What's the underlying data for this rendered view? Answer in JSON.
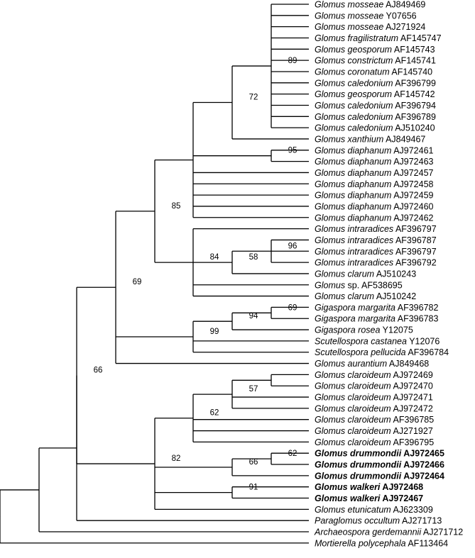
{
  "tree": {
    "leaves": [
      {
        "genus": "Glomus",
        "epithet": "mosseae",
        "accession": "AJ849469"
      },
      {
        "genus": "Glomus",
        "epithet": "mosseae",
        "accession": "Y07656"
      },
      {
        "genus": "Glomus",
        "epithet": "mosseae",
        "accession": "AJ271924"
      },
      {
        "genus": "Glomus",
        "epithet": "fragilistratum",
        "accession": "AF145747"
      },
      {
        "genus": "Glomus",
        "epithet": "geosporum",
        "accession": "AF145743"
      },
      {
        "genus": "Glomus",
        "epithet": "constrictum",
        "accession": "AF145741"
      },
      {
        "genus": "Glomus",
        "epithet": "coronatum",
        "accession": "AF145740"
      },
      {
        "genus": "Glomus",
        "epithet": "caledonium",
        "accession": "AF396799"
      },
      {
        "genus": "Glomus",
        "epithet": "geosporum",
        "accession": "AF145742"
      },
      {
        "genus": "Glomus",
        "epithet": "caledonium",
        "accession": "AF396794"
      },
      {
        "genus": "Glomus",
        "epithet": "caledonium",
        "accession": "AF396789"
      },
      {
        "genus": "Glomus",
        "epithet": "caledonium",
        "accession": "AJ510240"
      },
      {
        "genus": "Glomus",
        "epithet": "xanthium",
        "accession": "AJ849467"
      },
      {
        "genus": "Glomus",
        "epithet": "diaphanum",
        "accession": "AJ972461"
      },
      {
        "genus": "Glomus",
        "epithet": "diaphanum",
        "accession": "AJ972463"
      },
      {
        "genus": "Glomus",
        "epithet": "diaphanum",
        "accession": "AJ972457"
      },
      {
        "genus": "Glomus",
        "epithet": "diaphanum",
        "accession": "AJ972458"
      },
      {
        "genus": "Glomus",
        "epithet": "diaphanum",
        "accession": "AJ972459"
      },
      {
        "genus": "Glomus",
        "epithet": "diaphanum",
        "accession": "AJ972460"
      },
      {
        "genus": "Glomus",
        "epithet": "diaphanum",
        "accession": "AJ972462"
      },
      {
        "genus": "Glomus",
        "epithet": "intraradices",
        "accession": "AF396797"
      },
      {
        "genus": "Glomus",
        "epithet": "intraradices",
        "accession": "AF396787"
      },
      {
        "genus": "Glomus",
        "epithet": "intraradices",
        "accession": "AF396797"
      },
      {
        "genus": "Glomus",
        "epithet": "intraradices",
        "accession": "AF396792"
      },
      {
        "genus": "Glomus",
        "epithet": "clarum",
        "accession": "AJ510243"
      },
      {
        "genus": "Glomus",
        "epithet": "sp.",
        "accession": "AF538695",
        "upright_epithet": true
      },
      {
        "genus": "Glomus",
        "epithet": "clarum",
        "accession": "AJ510242"
      },
      {
        "genus": "Gigaspora",
        "epithet": "margarita",
        "accession": "AF396782"
      },
      {
        "genus": "Gigaspora",
        "epithet": "margarita",
        "accession": "AF396783"
      },
      {
        "genus": "Gigaspora",
        "epithet": "rosea",
        "accession": "Y12075"
      },
      {
        "genus": "Scutellospora",
        "epithet": "castanea",
        "accession": "Y12076"
      },
      {
        "genus": "Scutellospora",
        "epithet": "pellucida",
        "accession": "AF396784"
      },
      {
        "genus": "Glomus",
        "epithet": "aurantium",
        "accession": "AJ849468"
      },
      {
        "genus": "Glomus",
        "epithet": "claroideum",
        "accession": "AJ972469"
      },
      {
        "genus": "Glomus",
        "epithet": "claroideum",
        "accession": "AJ972470"
      },
      {
        "genus": "Glomus",
        "epithet": "claroideum",
        "accession": "AJ972471"
      },
      {
        "genus": "Glomus",
        "epithet": "claroideum",
        "accession": "AJ972472"
      },
      {
        "genus": "Glomus",
        "epithet": "claroideum",
        "accession": "AF396785"
      },
      {
        "genus": "Glomus",
        "epithet": "claroideum",
        "accession": "AJ271927"
      },
      {
        "genus": "Glomus",
        "epithet": "claroideum",
        "accession": "AF396795"
      },
      {
        "genus": "Glomus",
        "epithet": "drummondii",
        "accession": "AJ972465",
        "bold": true
      },
      {
        "genus": "Glomus",
        "epithet": "drummondii",
        "accession": "AJ972466",
        "bold": true
      },
      {
        "genus": "Glomus",
        "epithet": "drummondii",
        "accession": "AJ972464",
        "bold": true
      },
      {
        "genus": "Glomus",
        "epithet": "walkeri",
        "accession": "AJ972468",
        "bold": true
      },
      {
        "genus": "Glomus",
        "epithet": "walkeri",
        "accession": "AJ972467",
        "bold": true
      },
      {
        "genus": "Glomus",
        "epithet": "etunicatum",
        "accession": "AJ623309"
      },
      {
        "genus": "Paraglomus",
        "epithet": "occultum",
        "accession": "AJ271713"
      },
      {
        "genus": "Archaeospora",
        "epithet": "gerdemannii",
        "accession": "AJ271712"
      },
      {
        "genus": "Mortierella",
        "epithet": "polycephala",
        "accession": "AF113464"
      }
    ],
    "clades": [
      {
        "id": "n89",
        "support": "89",
        "members": [
          "L0",
          "L1",
          "L2",
          "L3",
          "L4",
          "L5",
          "L6",
          "L7",
          "L8",
          "L9",
          "L10",
          "L11"
        ]
      },
      {
        "id": "n72",
        "support": "72",
        "members": [
          "n89",
          "L12"
        ]
      },
      {
        "id": "n95",
        "support": "95",
        "members": [
          "L13",
          "L14"
        ]
      },
      {
        "id": "nDia",
        "support": "",
        "members": [
          "n72",
          "n95",
          "L15",
          "L16",
          "L17",
          "L18",
          "L19"
        ]
      },
      {
        "id": "n96",
        "support": "96",
        "members": [
          "L21",
          "L22",
          "L23"
        ]
      },
      {
        "id": "n58",
        "support": "58",
        "members": [
          "n96",
          "L24"
        ]
      },
      {
        "id": "n84",
        "support": "84",
        "members": [
          "L20",
          "n58",
          "L25",
          "L26"
        ]
      },
      {
        "id": "n85",
        "support": "85",
        "members": [
          "nDia",
          "n84"
        ]
      },
      {
        "id": "n69b",
        "support": "69",
        "members": [
          "L27",
          "L28"
        ]
      },
      {
        "id": "n94",
        "support": "94",
        "members": [
          "n69b",
          "L29"
        ]
      },
      {
        "id": "n99",
        "support": "99",
        "members": [
          "n94",
          "L30",
          "L31"
        ]
      },
      {
        "id": "n69",
        "support": "69",
        "members": [
          "n85",
          "n99",
          "L32"
        ]
      },
      {
        "id": "nCl",
        "support": "",
        "members": [
          "L33",
          "L34"
        ]
      },
      {
        "id": "n57",
        "support": "57",
        "members": [
          "nCl",
          "L35",
          "L36"
        ]
      },
      {
        "id": "n62",
        "support": "62",
        "members": [
          "n57",
          "L37",
          "L38",
          "L39"
        ]
      },
      {
        "id": "n62b",
        "support": "62",
        "members": [
          "L40",
          "L41"
        ]
      },
      {
        "id": "n66b",
        "support": "66",
        "members": [
          "n62b",
          "L42"
        ]
      },
      {
        "id": "n91",
        "support": "91",
        "members": [
          "L43",
          "L44"
        ]
      },
      {
        "id": "n82",
        "support": "82",
        "members": [
          "n62",
          "n66b",
          "n91",
          "L45"
        ]
      },
      {
        "id": "n66",
        "support": "66",
        "members": [
          "n69",
          "n82"
        ]
      },
      {
        "id": "nP",
        "support": "",
        "members": [
          "n66",
          "L46"
        ]
      },
      {
        "id": "nA",
        "support": "",
        "members": [
          "nP",
          "L47"
        ]
      },
      {
        "id": "root",
        "support": "",
        "members": [
          "nA",
          "L48"
        ]
      }
    ]
  }
}
